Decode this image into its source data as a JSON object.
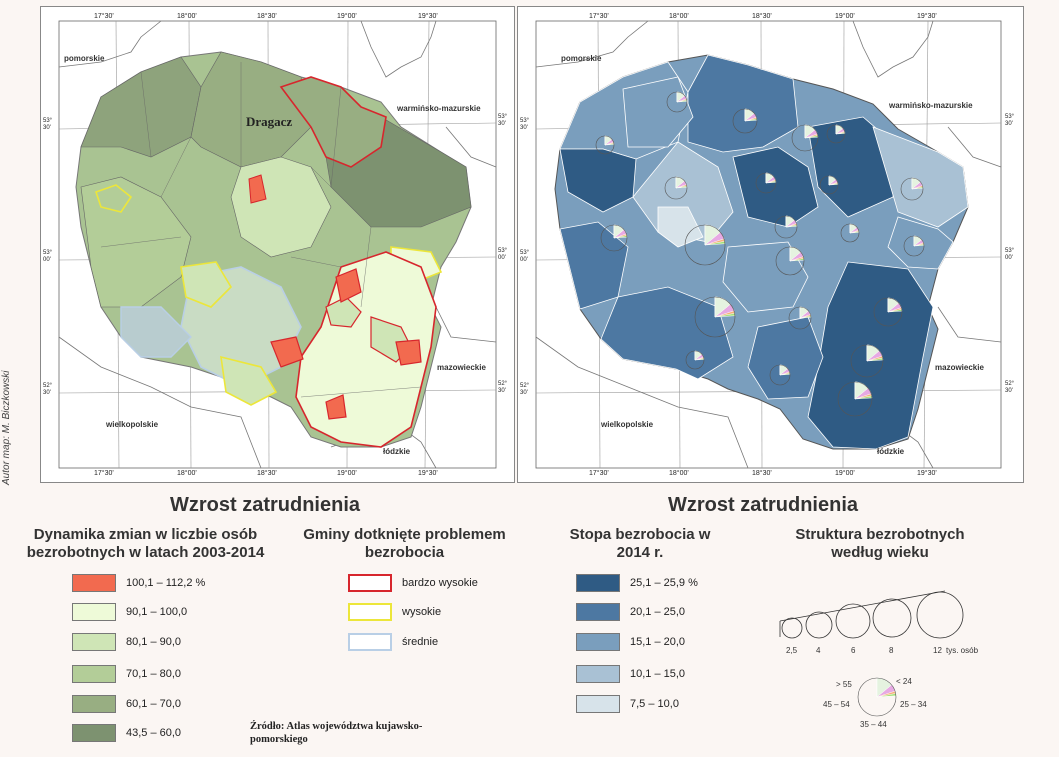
{
  "author": "Autor map: M. Biczkowski",
  "map_labels": {
    "lon_ticks": [
      "17°30'",
      "18°00'",
      "18°30'",
      "19°00'",
      "19°30'"
    ],
    "lat_ticks_left": [
      "53°\n30'",
      "53°\n00'",
      "52°\n30'"
    ],
    "regions": {
      "pomorskie": "pomorskie",
      "warminsko": "warmińsko-mazurskie",
      "mazowieckie": "mazowieckie",
      "wielkopolskie": "wielkopolskie",
      "lodzkie": "łódzkie"
    },
    "dragacz": "Dragacz"
  },
  "left_panel": {
    "title": "Wzrost zatrudnienia",
    "subtitle": "Dynamika zmian w liczbie osób bezrobotnych w latach 2003-2014",
    "fill_legend": [
      {
        "label": "100,1 – 112,2 %",
        "color": "#f26a4f"
      },
      {
        "label": "90,1 – 100,0",
        "color": "#eefad8"
      },
      {
        "label": "80,1 – 90,0",
        "color": "#cfe5b6"
      },
      {
        "label": "70,1 – 80,0",
        "color": "#b3cd98"
      },
      {
        "label": "60,1 – 70,0",
        "color": "#98ae82"
      },
      {
        "label": "43,5 – 60,0",
        "color": "#7d9270"
      }
    ],
    "problem_title": "Gminy dotknięte problemem bezrobocia",
    "problem_legend": [
      {
        "label": "bardzo wysokie",
        "color": "#d7262d"
      },
      {
        "label": "wysokie",
        "color": "#ece63a"
      },
      {
        "label": "średnie",
        "color": "#b9cfe6"
      }
    ]
  },
  "source": "Źródło: Atlas województwa kujawsko-pomorskiego",
  "right_panel": {
    "title": "Wzrost zatrudnienia",
    "rate_title": "Stopa bezrobocia w 2014 r.",
    "rate_legend": [
      {
        "label": "25,1 – 25,9 %",
        "color": "#2f5b84"
      },
      {
        "label": "20,1 – 25,0",
        "color": "#4d78a2"
      },
      {
        "label": "15,1 – 20,0",
        "color": "#7a9ebd"
      },
      {
        "label": "10,1 – 15,0",
        "color": "#a9c1d4"
      },
      {
        "label": "7,5 – 10,0",
        "color": "#d7e3ea"
      }
    ],
    "structure_title": "Struktura bezrobotnych według wieku",
    "size_labels": [
      "2,5",
      "4",
      "6",
      "8",
      "12"
    ],
    "size_unit": "tys. osób",
    "age_labels": {
      "lt24": "< 24",
      "a25_34": "25 – 34",
      "a35_44": "35 – 44",
      "a45_54": "45 – 54",
      "gt55": "> 55"
    },
    "age_colors": {
      "lt24": "#f0ef6a",
      "a25_34": "#a6e07a",
      "a35_44": "#f6b07a",
      "a45_54": "#e7a9e3",
      "gt55": "#e5f3e0"
    }
  }
}
